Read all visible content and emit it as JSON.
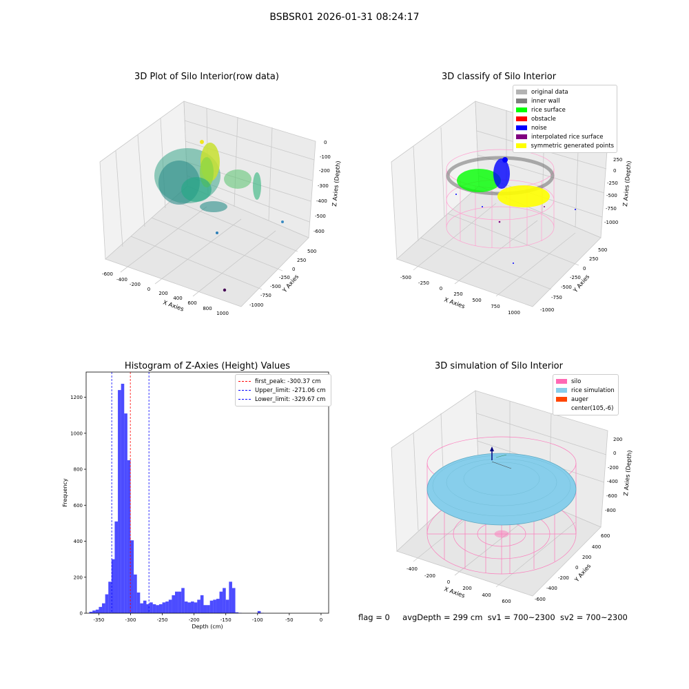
{
  "suptitle": "BSBSR01 2026-01-31 08:24:17",
  "panels": {
    "raw": {
      "title": "3D Plot of Silo Interior(row data)",
      "x_label": "X Axies",
      "y_label": "Y Axies",
      "z_label": "Z Axies (Depth)",
      "x_ticks": [
        "-600",
        "-400",
        "-200",
        "0",
        "200",
        "400",
        "600",
        "800",
        "1000"
      ],
      "y_ticks": [
        "500",
        "250",
        "0",
        "-250",
        "-500",
        "-750",
        "-1000"
      ],
      "z_ticks": [
        "0",
        "-100",
        "-200",
        "-300",
        "-400",
        "-500",
        "-600"
      ]
    },
    "classify": {
      "title": "3D classify of Silo Interior",
      "x_label": "X Axies",
      "y_label": "Y Axies",
      "z_label": "Z Axies (Depth)",
      "x_ticks": [
        "-500",
        "-250",
        "0",
        "250",
        "500",
        "750",
        "1000"
      ],
      "y_ticks": [
        "500",
        "250",
        "0",
        "-250",
        "-500",
        "-750",
        "-1000"
      ],
      "z_ticks": [
        "250",
        "0",
        "-250",
        "-500",
        "-750",
        "-1000"
      ],
      "legend": [
        {
          "label": "original data",
          "color": "#b3b3b3"
        },
        {
          "label": "inner wall",
          "color": "#808080"
        },
        {
          "label": "rice surface",
          "color": "#00ff00"
        },
        {
          "label": "obstacle",
          "color": "#ff0000"
        },
        {
          "label": "noise",
          "color": "#0000ff"
        },
        {
          "label": "interpolated rice surface",
          "color": "#800080"
        },
        {
          "label": "symmetric generated points",
          "color": "#ffff00"
        }
      ]
    },
    "simulation": {
      "title": "3D simulation of Silo Interior",
      "x_label": "X Axies",
      "y_label": "Y Axies",
      "z_label": "Z Axies (Depth)",
      "x_ticks": [
        "-400",
        "-200",
        "0",
        "200",
        "400",
        "600"
      ],
      "y_ticks": [
        "600",
        "400",
        "200",
        "0",
        "-200",
        "-400",
        "-600"
      ],
      "z_ticks": [
        "200",
        "0",
        "-200",
        "-400",
        "-600",
        "-800"
      ],
      "legend": [
        {
          "label": "silo",
          "color": "#ff69b4"
        },
        {
          "label": "rice simulation",
          "color": "#87ceeb"
        },
        {
          "label": "auger",
          "color": "#ff4500"
        },
        {
          "label": "center(105,-6)",
          "color": "#ffffff"
        }
      ]
    }
  },
  "status": {
    "flag": "flag = 0",
    "avg_depth": "avgDepth = 299 cm",
    "sv1": "sv1 = 700~2300",
    "sv2": "sv2 = 700~2300"
  },
  "chart_data": {
    "type": "bar",
    "title": "Histogram of Z-Axies (Height) Values",
    "xlabel": "Depth (cm)",
    "ylabel": "Frequency",
    "xlim": [
      -370,
      12
    ],
    "ylim": [
      0,
      1340
    ],
    "x_ticks": [
      -350,
      -300,
      -250,
      -200,
      -150,
      -100,
      -50,
      0
    ],
    "y_ticks": [
      0,
      200,
      400,
      600,
      800,
      1000,
      1200
    ],
    "bar_color": "#0000ff",
    "bin_start": -365,
    "bin_width": 5,
    "values": [
      8,
      15,
      20,
      35,
      55,
      105,
      175,
      300,
      510,
      1240,
      1275,
      1110,
      850,
      405,
      215,
      115,
      55,
      70,
      50,
      60,
      50,
      45,
      50,
      60,
      65,
      75,
      100,
      120,
      120,
      140,
      65,
      60,
      65,
      60,
      75,
      100,
      45,
      45,
      70,
      75,
      80,
      120,
      140,
      75,
      175,
      140,
      5,
      2,
      0,
      0,
      0,
      0,
      0,
      12,
      2
    ],
    "lines": [
      {
        "label": "first_peak: -300.37 cm",
        "x": -300.37,
        "color": "#ff0000"
      },
      {
        "label": "Upper_limit: -271.06 cm",
        "x": -271.06,
        "color": "#0000ff"
      },
      {
        "label": "Lower_limit: -329.67 cm",
        "x": -329.67,
        "color": "#0000ff"
      }
    ]
  }
}
